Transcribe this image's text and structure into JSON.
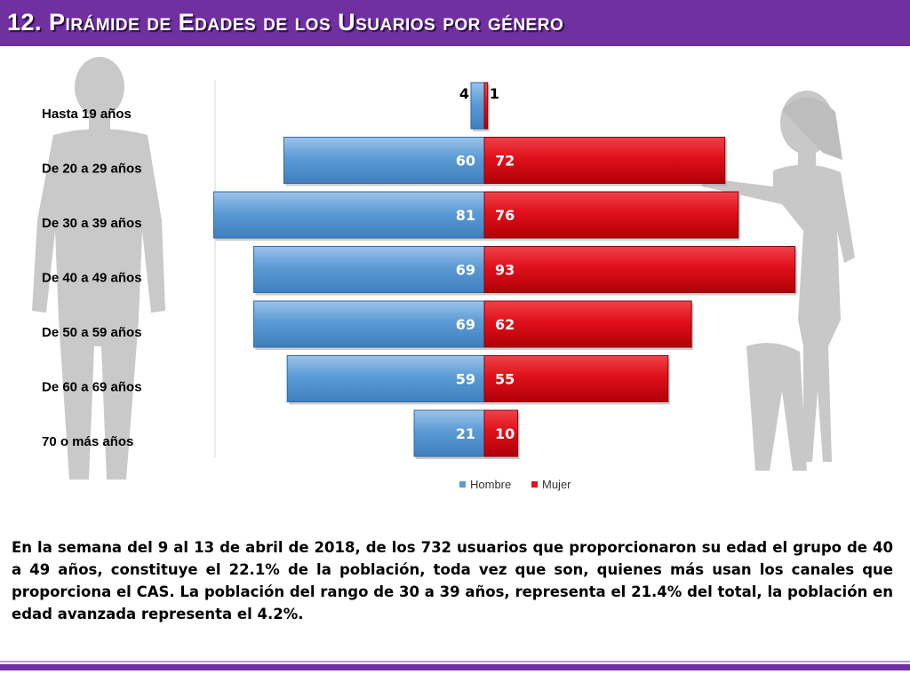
{
  "header": {
    "title": "12. Pirámide de Edades de los Usuarios por género"
  },
  "colors": {
    "header_bg": "#7030a0",
    "hombre": "#5b9bd5",
    "mujer": "#e0101a",
    "silhouette": "#c8c8c8"
  },
  "chart_data": {
    "type": "bar",
    "orientation": "horizontal-pyramid",
    "title": "",
    "categories": [
      "Hasta 19 años",
      "De 20 a 29 años",
      "De 30 a 39 años",
      "De 40 a 49 años",
      "De 50 a 59 años",
      "De 60 a 69 años",
      "70 o más años"
    ],
    "series": [
      {
        "name": "Hombre",
        "values": [
          4,
          60,
          81,
          69,
          69,
          59,
          21
        ],
        "color": "#5b9bd5"
      },
      {
        "name": "Mujer",
        "values": [
          1,
          72,
          76,
          93,
          62,
          55,
          10
        ],
        "color": "#e0101a"
      }
    ],
    "xlim": [
      -81,
      93
    ],
    "grid": false,
    "data_labels": true,
    "legend_position": "bottom",
    "decoration": "male and female silhouettes"
  },
  "paragraph": {
    "text": "En la semana del 9 al 13 de abril de 2018, de los 732 usuarios  que proporcionaron su edad el grupo de 40 a 49 años, constituye el 22.1% de la población, toda vez que son, quienes más usan los canales que proporciona el CAS. La población del rango de 30 a 39 años, representa el 21.4% del total, la población en edad avanzada representa el 4.2%."
  }
}
